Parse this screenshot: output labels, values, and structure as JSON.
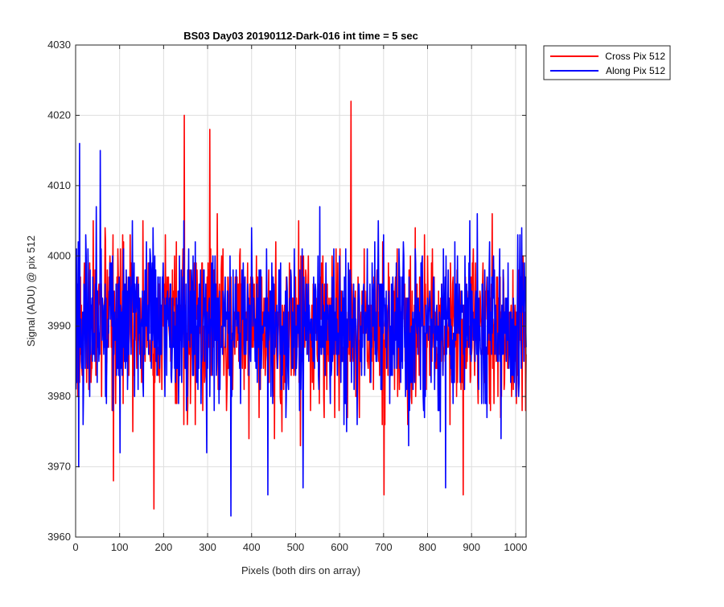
{
  "chart_data": {
    "type": "line",
    "title": "BS03 Day03 20190112-Dark-016 int time = 5 sec",
    "xlabel": "Pixels (both dirs on array)",
    "ylabel": "Signal (ADU) @ pix 512",
    "xlim": [
      0,
      1024
    ],
    "ylim": [
      3960,
      4030
    ],
    "xticks": [
      0,
      100,
      200,
      300,
      400,
      500,
      600,
      700,
      800,
      900,
      1000
    ],
    "yticks": [
      3960,
      3970,
      3980,
      3990,
      4000,
      4010,
      4020,
      4030
    ],
    "grid": true,
    "legend_position": "outside-top-right",
    "series": [
      {
        "name": "Cross Pix 512",
        "color": "#ff0000",
        "mean": 3990,
        "std": 5.5,
        "seed": 17,
        "spikes": [
          [
            246,
            4020
          ],
          [
            304,
            4018
          ],
          [
            625,
            4022
          ],
          [
            177,
            3964
          ],
          [
            85,
            3968
          ],
          [
            700,
            3966
          ],
          [
            880,
            3966
          ]
        ]
      },
      {
        "name": "Along Pix 512",
        "color": "#0000ff",
        "mean": 3990,
        "std": 5.8,
        "seed": 91,
        "spikes": [
          [
            8,
            4016
          ],
          [
            55,
            4015
          ],
          [
            352,
            3963
          ],
          [
            6,
            3970
          ],
          [
            436,
            3966
          ],
          [
            516,
            3967
          ],
          [
            840,
            3967
          ]
        ]
      }
    ]
  }
}
